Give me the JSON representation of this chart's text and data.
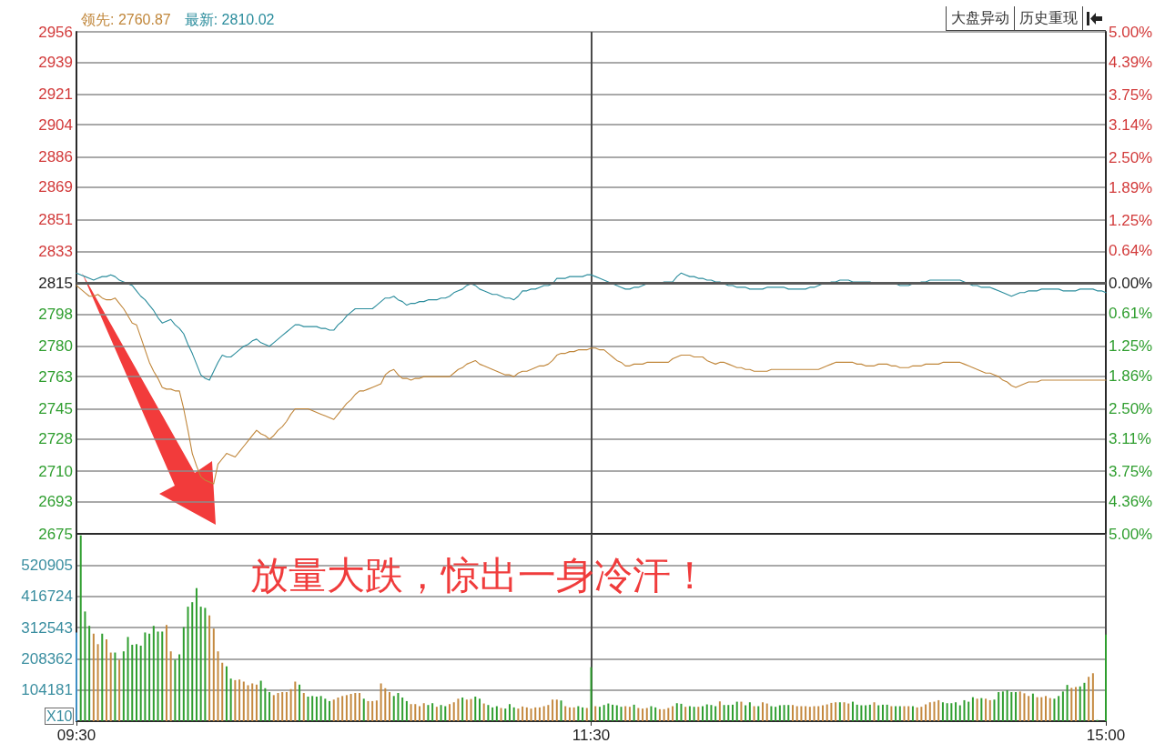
{
  "chart_data": [
    {
      "type": "line",
      "legend": "top left",
      "tick_labels": "y",
      "grid": true,
      "annotations": [
        "大盘异动",
        "历史重现"
      ],
      "categories": [
        null,
        null,
        null,
        null,
        null,
        null,
        null,
        null,
        null,
        null,
        null,
        null,
        null,
        null,
        null,
        null,
        null,
        null,
        null,
        null,
        null,
        null,
        null,
        null,
        null,
        null,
        null,
        null,
        null,
        null,
        null,
        null,
        null,
        null,
        null,
        null,
        null,
        null,
        null,
        null,
        null,
        null,
        null,
        null,
        null,
        null,
        null,
        null,
        null,
        null,
        null,
        null,
        null,
        null,
        null,
        null,
        null,
        null,
        null,
        null,
        null,
        null,
        null,
        null,
        null,
        null,
        null,
        null,
        null,
        null,
        null,
        null,
        null,
        null,
        null,
        null,
        null,
        null,
        null,
        null,
        null,
        null,
        null,
        null,
        null,
        null,
        null,
        null,
        null,
        null,
        null,
        null,
        null,
        null,
        null,
        null,
        null,
        null,
        null,
        null,
        null,
        null,
        null,
        null,
        null,
        null,
        null,
        null,
        null,
        null,
        null,
        null,
        null,
        null,
        null,
        null,
        null,
        null,
        null,
        null,
        null,
        null,
        null,
        null,
        null,
        null,
        null,
        null,
        null,
        null,
        null,
        null,
        null,
        null,
        null,
        null,
        null,
        null,
        null,
        null,
        null,
        null,
        null,
        null,
        null,
        null,
        null,
        null,
        null,
        null,
        null,
        null,
        null,
        null,
        null,
        null,
        null,
        null,
        null,
        null,
        null,
        null,
        null,
        null,
        null,
        null,
        null,
        null,
        null,
        null,
        null,
        null,
        null,
        null,
        null,
        null,
        null,
        null,
        null,
        null,
        null,
        null,
        null,
        null,
        null,
        null,
        null,
        null,
        null,
        null,
        null,
        null,
        null,
        null,
        null,
        null,
        null,
        null,
        null,
        null,
        null,
        null,
        null,
        null,
        null,
        null,
        null,
        null,
        null,
        null,
        null,
        null,
        null,
        null,
        null,
        null,
        null,
        null,
        null,
        null,
        null,
        null,
        null,
        null,
        null,
        null,
        null,
        null,
        null,
        null,
        null,
        null,
        null,
        null,
        null,
        null,
        null,
        null,
        null,
        null,
        null
      ],
      "ylim": [
        2675,
        2956
      ],
      "yticks": [
        2675,
        2693,
        2710,
        2728,
        2745,
        2763,
        2780,
        2798,
        2815,
        2833,
        2851,
        2869,
        2886,
        2904,
        2921,
        2939,
        2956
      ],
      "y2lim": [
        -5,
        5
      ],
      "y2ticks": [
        {
          "value": 5,
          "label": "5.00%"
        },
        {
          "value": 4.39,
          "label": "4.39%"
        },
        {
          "value": 3.75,
          "label": "3.75%"
        },
        {
          "value": 3.14,
          "label": "3.14%"
        },
        {
          "value": 2.5,
          "label": "2.50%"
        },
        {
          "value": 1.89,
          "label": "1.89%"
        },
        {
          "value": 1.25,
          "label": "1.25%"
        },
        {
          "value": 0.64,
          "label": "0.64%"
        },
        {
          "value": 0,
          "label": "0.00%"
        },
        {
          "value": -0.61,
          "label": "0.61%"
        },
        {
          "value": -1.25,
          "label": "1.25%"
        },
        {
          "value": -1.86,
          "label": "1.86%"
        },
        {
          "value": -2.5,
          "label": "2.50%"
        },
        {
          "value": -3.11,
          "label": "3.11%"
        },
        {
          "value": -3.75,
          "label": "3.75%"
        },
        {
          "value": -4.36,
          "label": "4.36%"
        },
        {
          "value": -5,
          "label": "5.00%"
        }
      ],
      "ref_lines": [
        {
          "axis": "y2",
          "value": 0,
          "color": "#5a5a5a"
        }
      ],
      "series": [
        {
          "name": "领先: 2760.87",
          "color": "#c0863a",
          "values": [
            2814,
            2812,
            2810,
            2808,
            2808,
            2809,
            2807,
            2806,
            2806,
            2807,
            2804,
            2801,
            2797,
            2793,
            2792,
            2785,
            2778,
            2771,
            2766,
            2762,
            2757,
            2756,
            2756,
            2755,
            2755,
            2745,
            2733,
            2720,
            2713,
            2707,
            2705,
            2704,
            2703,
            2714,
            2717,
            2720,
            2719,
            2718,
            2721,
            2724,
            2727,
            2730,
            2733,
            2731,
            2730,
            2728,
            2730,
            2733,
            2735,
            2738,
            2742,
            2745,
            2745,
            2745,
            2745,
            2744,
            2743,
            2742,
            2741,
            2740,
            2739,
            2742,
            2745,
            2748,
            2750,
            2753,
            2755,
            2755,
            2756,
            2757,
            2758,
            2759,
            2764,
            2766,
            2767,
            2764,
            2762,
            2762,
            2761,
            2762,
            2762,
            2763,
            2763,
            2763,
            2763,
            2763,
            2763,
            2763,
            2765,
            2767,
            2768,
            2770,
            2771,
            2772,
            2770,
            2769,
            2768,
            2767,
            2766,
            2765,
            2764,
            2764,
            2763,
            2765,
            2766,
            2766,
            2767,
            2768,
            2769,
            2769,
            2770,
            2772,
            2775,
            2776,
            2776,
            2777,
            2777,
            2778,
            2778,
            2778,
            2779,
            2779,
            2778,
            2778,
            2776,
            2774,
            2772,
            2771,
            2769,
            2769,
            2770,
            2770,
            2770,
            2771,
            2771,
            2771,
            2771,
            2771,
            2771,
            2773,
            2774,
            2775,
            2775,
            2775,
            2774,
            2774,
            2774,
            2772,
            2771,
            2770,
            2771,
            2771,
            2770,
            2769,
            2768,
            2768,
            2767,
            2767,
            2766,
            2766,
            2766,
            2766,
            2767,
            2767,
            2767,
            2767,
            2767,
            2767,
            2767,
            2767,
            2767,
            2767,
            2767,
            2767,
            2768,
            2769,
            2770,
            2771,
            2771,
            2771,
            2771,
            2771,
            2770,
            2770,
            2769,
            2769,
            2769,
            2770,
            2770,
            2770,
            2769,
            2769,
            2768,
            2768,
            2768,
            2769,
            2769,
            2769,
            2770,
            2770,
            2770,
            2770,
            2771,
            2771,
            2771,
            2771,
            2771,
            2770,
            2769,
            2768,
            2767,
            2766,
            2765,
            2765,
            2764,
            2763,
            2761,
            2760,
            2758,
            2757,
            2758,
            2759,
            2760,
            2760,
            2760,
            2761,
            2761,
            2761,
            2761,
            2761,
            2761,
            2761,
            2761,
            2761,
            2761,
            2761,
            2761,
            2761,
            2761,
            2761,
            2761
          ]
        },
        {
          "name": "最新: 2810.02",
          "color": "#2a8c9c",
          "values": [
            2821,
            2820,
            2819,
            2818,
            2817,
            2818,
            2819,
            2819,
            2820,
            2819,
            2817,
            2816,
            2815,
            2814,
            2811,
            2808,
            2806,
            2803,
            2800,
            2796,
            2793,
            2794,
            2795,
            2792,
            2790,
            2787,
            2781,
            2776,
            2770,
            2764,
            2762,
            2761,
            2766,
            2771,
            2775,
            2774,
            2774,
            2776,
            2778,
            2780,
            2781,
            2783,
            2784,
            2782,
            2781,
            2780,
            2782,
            2784,
            2786,
            2788,
            2790,
            2792,
            2792,
            2791,
            2791,
            2791,
            2791,
            2790,
            2790,
            2789,
            2789,
            2792,
            2794,
            2797,
            2799,
            2801,
            2801,
            2801,
            2801,
            2801,
            2803,
            2805,
            2807,
            2807,
            2808,
            2806,
            2805,
            2803,
            2804,
            2804,
            2805,
            2805,
            2806,
            2806,
            2806,
            2807,
            2807,
            2808,
            2810,
            2811,
            2812,
            2814,
            2815,
            2814,
            2812,
            2811,
            2810,
            2809,
            2809,
            2808,
            2807,
            2807,
            2806,
            2808,
            2811,
            2811,
            2812,
            2812,
            2813,
            2814,
            2814,
            2815,
            2818,
            2818,
            2818,
            2819,
            2819,
            2819,
            2819,
            2820,
            2820,
            2819,
            2818,
            2817,
            2816,
            2815,
            2814,
            2813,
            2812,
            2812,
            2813,
            2813,
            2814,
            2815,
            2815,
            2815,
            2815,
            2816,
            2816,
            2816,
            2819,
            2821,
            2820,
            2819,
            2819,
            2818,
            2818,
            2817,
            2817,
            2816,
            2816,
            2815,
            2814,
            2814,
            2813,
            2813,
            2813,
            2812,
            2812,
            2812,
            2812,
            2813,
            2813,
            2813,
            2813,
            2813,
            2812,
            2812,
            2812,
            2812,
            2812,
            2813,
            2813,
            2814,
            2815,
            2815,
            2816,
            2816,
            2817,
            2817,
            2817,
            2816,
            2816,
            2816,
            2816,
            2816,
            2815,
            2815,
            2815,
            2815,
            2815,
            2815,
            2814,
            2814,
            2814,
            2815,
            2815,
            2816,
            2816,
            2817,
            2817,
            2817,
            2817,
            2817,
            2817,
            2817,
            2817,
            2816,
            2815,
            2814,
            2814,
            2813,
            2813,
            2813,
            2812,
            2811,
            2810,
            2809,
            2808,
            2809,
            2810,
            2810,
            2811,
            2811,
            2811,
            2812,
            2812,
            2812,
            2812,
            2812,
            2811,
            2811,
            2811,
            2811,
            2812,
            2812,
            2812,
            2812,
            2811,
            2811,
            2810
          ]
        }
      ]
    },
    {
      "type": "bar",
      "grid": true,
      "ylabel": "X10",
      "annotations": [
        "放量大跌，惊出一身冷汗！"
      ],
      "categories": [
        "09:30",
        null,
        null,
        null,
        null,
        null,
        null,
        null,
        null,
        null,
        null,
        null,
        null,
        null,
        null,
        null,
        null,
        null,
        null,
        null,
        null,
        null,
        null,
        null,
        null,
        null,
        null,
        null,
        null,
        null,
        null,
        null,
        null,
        null,
        null,
        null,
        null,
        null,
        null,
        null,
        null,
        null,
        null,
        null,
        null,
        null,
        null,
        null,
        null,
        null,
        null,
        null,
        null,
        null,
        null,
        null,
        null,
        null,
        null,
        null,
        null,
        null,
        null,
        null,
        null,
        null,
        null,
        null,
        null,
        null,
        null,
        null,
        null,
        null,
        null,
        null,
        null,
        null,
        null,
        null,
        null,
        null,
        null,
        null,
        null,
        null,
        null,
        null,
        null,
        null,
        null,
        null,
        null,
        null,
        null,
        null,
        null,
        null,
        null,
        null,
        null,
        null,
        null,
        null,
        null,
        null,
        null,
        null,
        null,
        null,
        null,
        null,
        null,
        null,
        null,
        null,
        null,
        null,
        null,
        null,
        "11:30",
        null,
        null,
        null,
        null,
        null,
        null,
        null,
        null,
        null,
        null,
        null,
        null,
        null,
        null,
        null,
        null,
        null,
        null,
        null,
        null,
        null,
        null,
        null,
        null,
        null,
        null,
        null,
        null,
        null,
        null,
        null,
        null,
        null,
        null,
        null,
        null,
        null,
        null,
        null,
        null,
        null,
        null,
        null,
        null,
        null,
        null,
        null,
        null,
        null,
        null,
        null,
        null,
        null,
        null,
        null,
        null,
        null,
        null,
        null,
        null,
        null,
        null,
        null,
        null,
        null,
        null,
        null,
        null,
        null,
        null,
        null,
        null,
        null,
        null,
        null,
        null,
        null,
        null,
        null,
        null,
        null,
        null,
        null,
        null,
        null,
        null,
        null,
        null,
        null,
        null,
        null,
        null,
        null,
        null,
        null,
        null,
        null,
        null,
        null,
        null,
        null,
        null,
        null,
        null,
        null,
        null,
        null,
        null,
        null,
        null,
        null,
        null,
        null,
        null,
        null,
        null,
        null,
        null,
        null,
        "15:00"
      ],
      "ylim": [
        0,
        625086
      ],
      "yticks": [
        104181,
        208362,
        312543,
        416724,
        520905
      ],
      "values": [
        296000,
        620000,
        366000,
        318000,
        292000,
        257000,
        292000,
        273000,
        229000,
        229000,
        205000,
        233000,
        281000,
        255000,
        257000,
        252000,
        296000,
        292000,
        318000,
        299000,
        299000,
        321000,
        233000,
        205000,
        223000,
        314000,
        382000,
        397000,
        444000,
        382000,
        378000,
        353000,
        309000,
        233000,
        195000,
        183000,
        142000,
        137000,
        139000,
        132000,
        120000,
        126000,
        122000,
        135000,
        110000,
        97000,
        87000,
        94000,
        97000,
        97000,
        107000,
        132000,
        122000,
        94000,
        82000,
        84000,
        82000,
        84000,
        75000,
        67000,
        72000,
        79000,
        84000,
        87000,
        91000,
        94000,
        94000,
        75000,
        67000,
        67000,
        69000,
        126000,
        110000,
        97000,
        84000,
        94000,
        79000,
        67000,
        57000,
        57000,
        50000,
        60000,
        54000,
        60000,
        48000,
        54000,
        50000,
        57000,
        63000,
        75000,
        79000,
        72000,
        74000,
        82000,
        75000,
        59000,
        54000,
        46000,
        50000,
        44000,
        42000,
        57000,
        46000,
        42000,
        49000,
        46000,
        42000,
        46000,
        46000,
        50000,
        54000,
        72000,
        72000,
        69000,
        50000,
        46000,
        46000,
        50000,
        46000,
        44000,
        180000,
        50000,
        48000,
        54000,
        59000,
        55000,
        53000,
        48000,
        50000,
        48000,
        55000,
        44000,
        42000,
        44000,
        50000,
        46000,
        40000,
        40000,
        44000,
        50000,
        60000,
        58000,
        48000,
        50000,
        48000,
        48000,
        50000,
        56000,
        54000,
        50000,
        66000,
        54000,
        54000,
        55000,
        65000,
        65000,
        53000,
        63000,
        50000,
        50000,
        63000,
        59000,
        50000,
        48000,
        53000,
        54000,
        54000,
        54000,
        50000,
        50000,
        50000,
        48000,
        50000,
        50000,
        53000,
        56000,
        61000,
        63000,
        63000,
        63000,
        59000,
        65000,
        55000,
        53000,
        53000,
        55000,
        63000,
        53000,
        55000,
        55000,
        50000,
        50000,
        50000,
        50000,
        50000,
        50000,
        46000,
        48000,
        56000,
        63000,
        65000,
        70000,
        63000,
        60000,
        60000,
        63000,
        53000,
        70000,
        65000,
        80000,
        75000,
        77000,
        75000,
        70000,
        72000,
        97000,
        99000,
        103000,
        97000,
        97000,
        99000,
        93000,
        84000,
        92000,
        80000,
        80000,
        84000,
        77000,
        75000,
        84000,
        99000,
        121000,
        111000,
        114000,
        116000,
        128000,
        148000,
        160000,
        4000,
        null,
        289000
      ],
      "colors": [
        "#3f8fc4",
        "#2f9e2f",
        "#2f9e2f",
        "#2f9e2f",
        "#c4893f",
        "#c4893f",
        "#2f9e2f",
        "#c4893f",
        "#c4893f",
        "#2f9e2f",
        "#c4893f",
        "#2f9e2f",
        "#2f9e2f",
        "#2f9e2f",
        "#2f9e2f",
        "#2f9e2f",
        "#2f9e2f",
        "#2f9e2f",
        "#2f9e2f",
        "#2f9e2f",
        "#2f9e2f",
        "#c4893f",
        "#c4893f",
        "#2f9e2f",
        "#2f9e2f",
        "#2f9e2f",
        "#2f9e2f",
        "#2f9e2f",
        "#2f9e2f",
        "#2f9e2f",
        "#2f9e2f",
        "#c4893f",
        "#c4893f",
        "#c4893f",
        "#c4893f",
        "#2f9e2f",
        "#2f9e2f",
        "#c4893f",
        "#c4893f",
        "#c4893f",
        "#c4893f",
        "#c4893f",
        "#c4893f",
        "#2f9e2f",
        "#2f9e2f",
        "#2f9e2f",
        "#c4893f",
        "#c4893f",
        "#c4893f",
        "#c4893f",
        "#c4893f",
        "#c4893f",
        "#2f9e2f",
        "#c4893f",
        "#2f9e2f",
        "#2f9e2f",
        "#2f9e2f",
        "#2f9e2f",
        "#2f9e2f",
        "#2f9e2f",
        "#c4893f",
        "#c4893f",
        "#c4893f",
        "#c4893f",
        "#c4893f",
        "#c4893f",
        "#c4893f",
        "#2f9e2f",
        "#c4893f",
        "#c4893f",
        "#c4893f",
        "#c4893f",
        "#c4893f",
        "#c4893f",
        "#2f9e2f",
        "#2f9e2f",
        "#2f9e2f",
        "#2f9e2f",
        "#c4893f",
        "#c4893f",
        "#c4893f",
        "#c4893f",
        "#2f9e2f",
        "#2f9e2f",
        "#c4893f",
        "#2f9e2f",
        "#2f9e2f",
        "#c4893f",
        "#c4893f",
        "#c4893f",
        "#2f9e2f",
        "#c4893f",
        "#c4893f",
        "#2f9e2f",
        "#2f9e2f",
        "#c4893f",
        "#2f9e2f",
        "#2f9e2f",
        "#2f9e2f",
        "#c4893f",
        "#2f9e2f",
        "#2f9e2f",
        "#2f9e2f",
        "#c4893f",
        "#c4893f",
        "#c4893f",
        "#c4893f",
        "#c4893f",
        "#c4893f",
        "#c4893f",
        "#c4893f",
        "#c4893f",
        "#c4893f",
        "#2f9e2f",
        "#c4893f",
        "#c4893f",
        "#c4893f",
        "#2f9e2f",
        "#2f9e2f",
        "#c4893f",
        "#2f9e2f",
        "#c4893f",
        "#2f9e2f",
        "#2f9e2f",
        "#2f9e2f",
        "#2f9e2f",
        "#2f9e2f",
        "#2f9e2f",
        "#c4893f",
        "#c4893f",
        "#2f9e2f",
        "#c4893f",
        "#c4893f",
        "#c4893f",
        "#2f9e2f",
        "#2f9e2f",
        "#c4893f",
        "#c4893f",
        "#c4893f",
        "#c4893f",
        "#2f9e2f",
        "#2f9e2f",
        "#c4893f",
        "#2f9e2f",
        "#2f9e2f",
        "#c4893f",
        "#2f9e2f",
        "#2f9e2f",
        "#2f9e2f",
        "#2f9e2f",
        "#c4893f",
        "#2f9e2f",
        "#2f9e2f",
        "#2f9e2f",
        "#2f9e2f",
        "#c4893f",
        "#2f9e2f",
        "#2f9e2f",
        "#c4893f",
        "#2f9e2f",
        "#c4893f",
        "#c4893f",
        "#2f9e2f",
        "#2f9e2f",
        "#2f9e2f",
        "#2f9e2f",
        "#2f9e2f",
        "#c4893f",
        "#c4893f",
        "#c4893f",
        "#c4893f",
        "#c4893f",
        "#c4893f",
        "#c4893f",
        "#c4893f",
        "#c4893f",
        "#c4893f",
        "#c4893f",
        "#2f9e2f",
        "#c4893f",
        "#c4893f",
        "#2f9e2f",
        "#2f9e2f",
        "#2f9e2f",
        "#2f9e2f",
        "#2f9e2f",
        "#c4893f",
        "#2f9e2f",
        "#2f9e2f",
        "#2f9e2f",
        "#c4893f",
        "#2f9e2f",
        "#2f9e2f",
        "#c4893f",
        "#c4893f",
        "#2f9e2f",
        "#c4893f",
        "#c4893f",
        "#c4893f",
        "#c4893f",
        "#c4893f",
        "#c4893f",
        "#2f9e2f",
        "#2f9e2f",
        "#2f9e2f",
        "#2f9e2f",
        "#2f9e2f",
        "#2f9e2f",
        "#2f9e2f",
        "#2f9e2f",
        "#c4893f",
        "#2f9e2f",
        "#c4893f",
        "#c4893f",
        "#2f9e2f",
        "#2f9e2f",
        "#2f9e2f",
        "#2f9e2f",
        "#2f9e2f",
        "#2f9e2f",
        "#c4893f",
        "#c4893f",
        "#c4893f",
        "#2f9e2f",
        "#c4893f",
        "#c4893f",
        "#c4893f",
        "#c4893f",
        "#2f9e2f",
        "#2f9e2f",
        "#2f9e2f",
        "#2f9e2f",
        "#c4893f",
        "#c4893f",
        "#2f9e2f",
        "#2f9e2f",
        "#c4893f",
        "#c4893f",
        "#2f9e2f",
        "#2f9e2f",
        "#2f9e2f"
      ]
    }
  ]
}
